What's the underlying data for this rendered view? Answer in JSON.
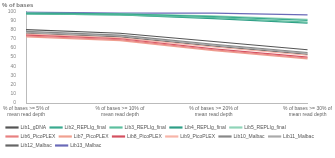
{
  "chart_data": {
    "type": "line",
    "ylabel": "% of bases",
    "categories": [
      "% of bases >= 5% of mean read depth",
      "% of bases >= 10% of mean read depth",
      "% of bases >= 20% of mean read depth",
      "% of bases >= 30% of mean read depth"
    ],
    "series": [
      {
        "name": "Lib1_gDNA",
        "color": "#555555",
        "values": [
          80,
          76,
          67,
          58
        ]
      },
      {
        "name": "Lib2_REPLIg_final",
        "color": "#3aaa8f",
        "values": [
          98,
          97,
          94,
          90
        ]
      },
      {
        "name": "Lib3_REPLIg_final",
        "color": "#5cbf9e",
        "values": [
          97,
          96,
          93,
          88
        ]
      },
      {
        "name": "Lib4_REPLIg_final",
        "color": "#2e9e86",
        "values": [
          97,
          96,
          92,
          87
        ]
      },
      {
        "name": "Lib5_REPLIg_final",
        "color": "#8fd4b8",
        "values": [
          98,
          97,
          95,
          91
        ]
      },
      {
        "name": "Lib6_PicoPLEX",
        "color": "#e88080",
        "values": [
          73,
          69,
          58,
          49
        ]
      },
      {
        "name": "Lib7_PicoPLEX",
        "color": "#f0a090",
        "values": [
          72,
          68,
          57,
          48
        ]
      },
      {
        "name": "Lib8_PicoPLEX",
        "color": "#d45060",
        "values": [
          74,
          70,
          59,
          50
        ]
      },
      {
        "name": "Lib9_PicoPLEX",
        "color": "#f7b5a8",
        "values": [
          75,
          71,
          61,
          52
        ]
      },
      {
        "name": "Lib10_Malbac",
        "color": "#888888",
        "values": [
          78,
          74,
          64,
          55
        ]
      },
      {
        "name": "Lib11_Malbac",
        "color": "#aaaaaa",
        "values": [
          77,
          73,
          63,
          54
        ]
      },
      {
        "name": "Lib12_Malbac",
        "color": "#666666",
        "values": [
          76,
          72,
          62,
          53
        ]
      },
      {
        "name": "Lib13_Malbac",
        "color": "#6a6ab8",
        "values": [
          99,
          98,
          98,
          96
        ]
      }
    ],
    "ylim": [
      0,
      100
    ],
    "yticks": [
      0,
      10,
      20,
      30,
      40,
      50,
      60,
      70,
      80,
      90,
      100
    ],
    "grid": false,
    "legend": "bottom"
  }
}
